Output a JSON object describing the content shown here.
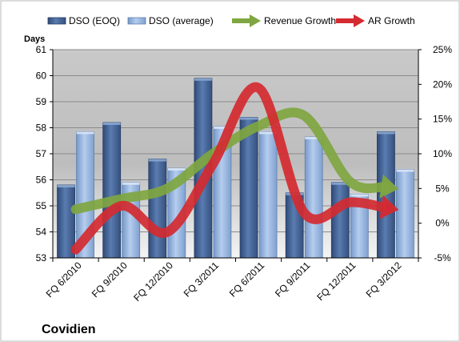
{
  "chart_data": {
    "type": "bar",
    "company": "Covidien",
    "ylabel": "Days",
    "categories": [
      "FQ 6/2010",
      "FQ 9/2010",
      "FQ 12/2010",
      "FQ 3/2011",
      "FQ 6/2011",
      "FQ 9/2011",
      "FQ 12/2011",
      "FQ 3/2012"
    ],
    "ylim": [
      53,
      61
    ],
    "y_ticks": [
      "53",
      "54",
      "55",
      "56",
      "57",
      "58",
      "59",
      "60",
      "61"
    ],
    "y2lim": [
      -5,
      25
    ],
    "y2_ticks": [
      "-5%",
      "0%",
      "5%",
      "10%",
      "15%",
      "20%",
      "25%"
    ],
    "series": [
      {
        "name": "DSO (EOQ)",
        "kind": "bar",
        "axis": "left",
        "color": "#4a6a9c",
        "values": [
          55.8,
          58.2,
          56.8,
          59.9,
          58.4,
          55.5,
          55.9,
          57.85
        ]
      },
      {
        "name": "DSO (average)",
        "kind": "bar",
        "axis": "left",
        "color": "#9ab8e0",
        "values": [
          57.85,
          55.9,
          56.45,
          58.05,
          57.85,
          57.65,
          55.45,
          56.4
        ]
      },
      {
        "name": "Revenue Growth",
        "kind": "arrow-line",
        "axis": "right",
        "color": "#7fa640",
        "values": [
          2,
          3.5,
          5,
          10,
          14,
          15.5,
          6,
          5
        ]
      },
      {
        "name": "AR Growth",
        "kind": "arrow-line",
        "axis": "right",
        "color": "#d42a30",
        "values": [
          -3.8,
          2.5,
          -1.3,
          8.5,
          19.5,
          1.5,
          3,
          2
        ]
      }
    ],
    "legend_position": "top",
    "grid": true
  }
}
